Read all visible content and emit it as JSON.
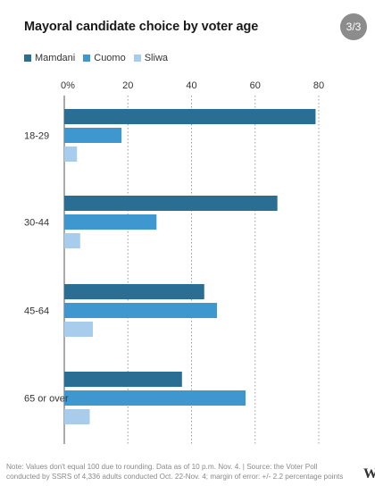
{
  "pager": {
    "label": "3/3"
  },
  "footnote": {
    "line1": "Note: Values don't equal 100 due to rounding. Data as of 10 p.m. Nov. 4.  | Source: the Voter Poll",
    "line2": "conducted by SSRS of 4,336 adults conducted Oct. 22-Nov. 4; margin of error: +/- 2.2 percentage points"
  },
  "brand": {
    "text": "W"
  },
  "chart_data": {
    "type": "bar",
    "orientation": "horizontal",
    "title": "Mayoral candidate choice by voter age",
    "categories": [
      "18-29",
      "30-44",
      "45-64",
      "65 or over"
    ],
    "series": [
      {
        "name": "Mamdani",
        "color": "#2b6e93",
        "values": [
          79,
          67,
          44,
          37
        ]
      },
      {
        "name": "Cuomo",
        "color": "#3f97cf",
        "values": [
          18,
          29,
          48,
          57
        ]
      },
      {
        "name": "Sliwa",
        "color": "#a8cdec",
        "values": [
          4,
          5,
          9,
          8
        ]
      }
    ],
    "xlim": [
      0,
      80
    ],
    "xticks": [
      0,
      20,
      40,
      60,
      80
    ],
    "xtick_labels": [
      "0%",
      "20",
      "40",
      "60",
      "80"
    ],
    "grid": true,
    "legend": "top-left",
    "xlabel": "",
    "ylabel": ""
  }
}
